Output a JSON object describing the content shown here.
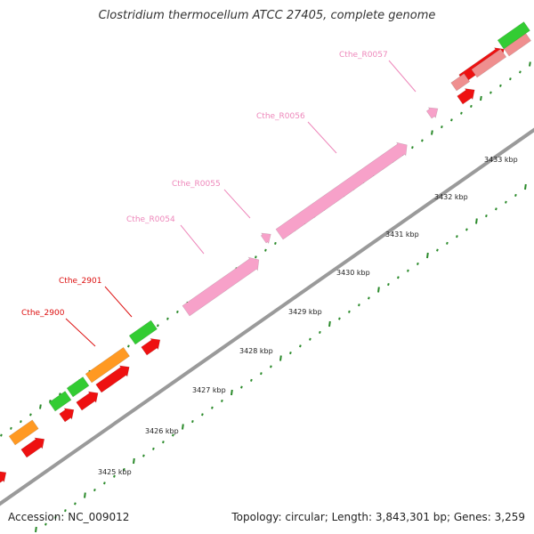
{
  "title": "Clostridium thermocellum ATCC 27405, complete genome",
  "accession": "Accession: NC_009012",
  "summary": "Topology: circular; Length: 3,843,301 bp; Genes: 3,259",
  "colors": {
    "backbone": "#9a9a9a",
    "dots": "#2a8a2a",
    "cds_red": "#ee1111",
    "cds_green": "#33cc33",
    "cds_orange": "#ff9922",
    "rrna_pink": "#f7a1c9",
    "pale_red": "#ef8f8f",
    "label_red": "#dd1111",
    "label_pink": "#ee88bb"
  },
  "ticks": [
    {
      "label": "3425 kbp"
    },
    {
      "label": "3426 kbp"
    },
    {
      "label": "3427 kbp"
    },
    {
      "label": "3428 kbp"
    },
    {
      "label": "3429 kbp"
    },
    {
      "label": "3430 kbp"
    },
    {
      "label": "3431 kbp"
    },
    {
      "label": "3432 kbp"
    },
    {
      "label": "3433 kbp"
    }
  ],
  "gene_labels": [
    {
      "name": "Cthe_2900",
      "kind": "cds"
    },
    {
      "name": "Cthe_2901",
      "kind": "cds"
    },
    {
      "name": "Cthe_R0054",
      "kind": "rrna"
    },
    {
      "name": "Cthe_R0055",
      "kind": "rrna"
    },
    {
      "name": "Cthe_R0056",
      "kind": "rrna"
    },
    {
      "name": "Cthe_R0057",
      "kind": "rrna"
    }
  ]
}
